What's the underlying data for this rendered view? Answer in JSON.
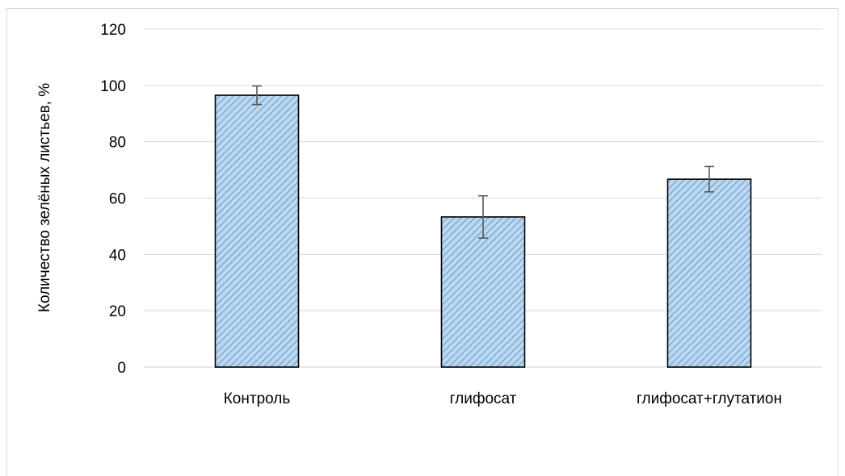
{
  "chart_data": {
    "type": "bar",
    "title": "",
    "xlabel": "",
    "ylabel": "Количество зелёных листьев, %",
    "categories": [
      "Контроль",
      "глифосат",
      "глифосат+глутатион"
    ],
    "values": [
      96.5,
      53.3,
      66.7
    ],
    "errors": [
      3.3,
      7.5,
      4.5
    ],
    "ylim": [
      0,
      120
    ],
    "yticks": [
      "0",
      "20",
      "40",
      "60",
      "80",
      "100",
      "120"
    ],
    "grid": true,
    "legend": "none",
    "bar_color": "#9dc3e6",
    "bar_pattern": "diagonal-hatch",
    "bar_edge_color": "#000000",
    "grid_color": "#d9d9d9",
    "error_bar_color": "#595959"
  }
}
